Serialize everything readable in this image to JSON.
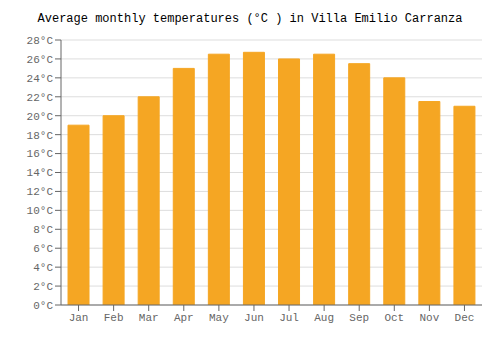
{
  "chart_data": {
    "type": "bar",
    "title": "Average monthly temperatures (°C ) in Villa Emilio Carranza",
    "categories": [
      "Jan",
      "Feb",
      "Mar",
      "Apr",
      "May",
      "Jun",
      "Jul",
      "Aug",
      "Sep",
      "Oct",
      "Nov",
      "Dec"
    ],
    "values": [
      19.0,
      20.0,
      22.0,
      25.0,
      26.5,
      26.7,
      26.0,
      26.5,
      25.5,
      24.0,
      21.5,
      21.0
    ],
    "color": "#F5A623",
    "ylim": [
      0,
      28
    ],
    "yticks": [
      {
        "value": 0,
        "label": "0°C"
      },
      {
        "value": 2,
        "label": "2°C"
      },
      {
        "value": 4,
        "label": "4°C"
      },
      {
        "value": 6,
        "label": "6°C"
      },
      {
        "value": 8,
        "label": "8°C"
      },
      {
        "value": 10,
        "label": "10°C"
      },
      {
        "value": 12,
        "label": "12°C"
      },
      {
        "value": 14,
        "label": "14°C"
      },
      {
        "value": 16,
        "label": "16°C"
      },
      {
        "value": 18,
        "label": "18°C"
      },
      {
        "value": 20,
        "label": "20°C"
      },
      {
        "value": 22,
        "label": "22°C"
      },
      {
        "value": 24,
        "label": "24°C"
      },
      {
        "value": 26,
        "label": "26°C"
      },
      {
        "value": 28,
        "label": "28°C"
      }
    ],
    "grid": true
  }
}
